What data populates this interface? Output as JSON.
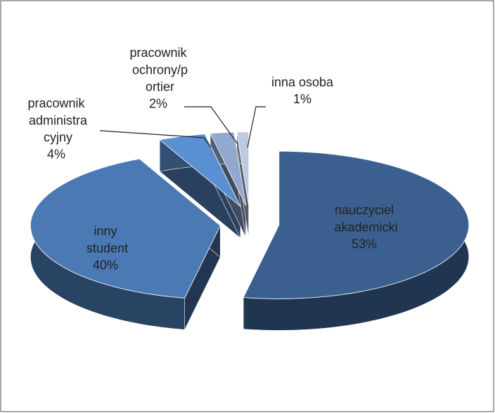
{
  "chart_data": {
    "type": "pie",
    "categories": [
      "nauczyciel\nakademicki",
      "inny\nstudent",
      "pracownik\nadministra\ncyjny",
      "pracownik\nochrony/p\nortier",
      "inna osoba"
    ],
    "values": [
      53,
      40,
      4,
      2,
      1
    ],
    "value_labels": [
      "53%",
      "40%",
      "4%",
      "2%",
      "1%"
    ],
    "colors": [
      "#3b6090",
      "#4b79b4",
      "#5a8fd2",
      "#92a9cf",
      "#bccbe2"
    ]
  }
}
